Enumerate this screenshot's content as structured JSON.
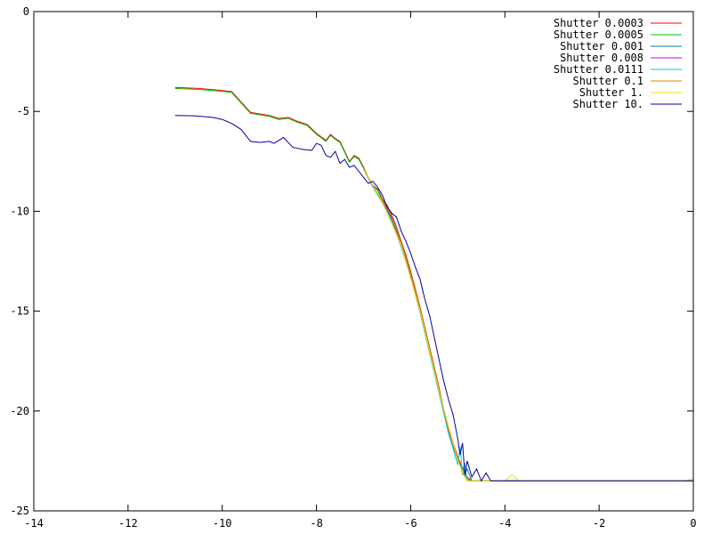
{
  "chart_data": {
    "type": "line",
    "title": "",
    "xlabel": "",
    "ylabel": "",
    "xlim": [
      -14,
      0
    ],
    "ylim": [
      -25,
      0
    ],
    "xticks": [
      -14,
      -12,
      -10,
      -8,
      -6,
      -4,
      -2,
      0
    ],
    "yticks": [
      0,
      -5,
      -10,
      -15,
      -20,
      -25
    ],
    "grid": false,
    "legend_position": "top-right",
    "series": [
      {
        "name": "Shutter 0.0003",
        "color": "#ff0000",
        "points": [
          [
            -11,
            -3.8
          ],
          [
            -10.5,
            -3.85
          ],
          [
            -10,
            -3.95
          ],
          [
            -9.8,
            -4.0
          ],
          [
            -9.4,
            -5.05
          ],
          [
            -9.0,
            -5.2
          ],
          [
            -8.8,
            -5.35
          ],
          [
            -8.6,
            -5.3
          ],
          [
            -8.4,
            -5.5
          ],
          [
            -8.2,
            -5.65
          ],
          [
            -8.0,
            -6.1
          ],
          [
            -7.8,
            -6.45
          ],
          [
            -7.7,
            -6.15
          ],
          [
            -7.6,
            -6.35
          ],
          [
            -7.5,
            -6.5
          ],
          [
            -7.4,
            -7.0
          ],
          [
            -7.3,
            -7.5
          ],
          [
            -7.2,
            -7.2
          ],
          [
            -7.1,
            -7.35
          ],
          [
            -7.0,
            -7.8
          ],
          [
            -6.9,
            -8.3
          ],
          [
            -6.8,
            -8.7
          ],
          [
            -6.7,
            -8.9
          ],
          [
            -6.6,
            -9.4
          ],
          [
            -6.5,
            -9.7
          ],
          [
            -6.4,
            -10.2
          ],
          [
            -6.3,
            -10.8
          ],
          [
            -6.2,
            -11.5
          ],
          [
            -6.1,
            -12.2
          ],
          [
            -6.0,
            -13.0
          ],
          [
            -5.9,
            -13.9
          ],
          [
            -5.8,
            -14.8
          ],
          [
            -5.7,
            -15.8
          ],
          [
            -5.6,
            -16.8
          ],
          [
            -5.5,
            -17.8
          ],
          [
            -5.4,
            -18.8
          ],
          [
            -5.3,
            -19.9
          ],
          [
            -5.2,
            -20.8
          ],
          [
            -5.1,
            -21.6
          ],
          [
            -5.0,
            -22.3
          ],
          [
            -4.9,
            -22.9
          ],
          [
            -4.8,
            -23.3
          ],
          [
            -4.7,
            -23.5
          ],
          [
            -4.0,
            -23.5
          ],
          [
            -2.0,
            -23.5
          ],
          [
            0,
            -23.5
          ]
        ]
      },
      {
        "name": "Shutter 0.0005",
        "color": "#00c000",
        "points": [
          [
            -11,
            -3.85
          ],
          [
            -10.5,
            -3.9
          ],
          [
            -10,
            -4.0
          ],
          [
            -9.8,
            -4.05
          ],
          [
            -9.4,
            -5.1
          ],
          [
            -9.0,
            -5.25
          ],
          [
            -8.8,
            -5.4
          ],
          [
            -8.6,
            -5.35
          ],
          [
            -8.4,
            -5.55
          ],
          [
            -8.2,
            -5.7
          ],
          [
            -8.0,
            -6.15
          ],
          [
            -7.8,
            -6.5
          ],
          [
            -7.7,
            -6.2
          ],
          [
            -7.6,
            -6.4
          ],
          [
            -7.5,
            -6.55
          ],
          [
            -7.4,
            -7.05
          ],
          [
            -7.3,
            -7.55
          ],
          [
            -7.2,
            -7.25
          ],
          [
            -7.1,
            -7.4
          ],
          [
            -7.0,
            -7.85
          ],
          [
            -6.9,
            -8.35
          ],
          [
            -6.8,
            -8.75
          ],
          [
            -6.7,
            -8.95
          ],
          [
            -6.6,
            -9.45
          ],
          [
            -6.5,
            -9.75
          ],
          [
            -6.4,
            -10.3
          ],
          [
            -6.3,
            -10.9
          ],
          [
            -6.2,
            -11.6
          ],
          [
            -6.1,
            -12.3
          ],
          [
            -6.0,
            -13.1
          ],
          [
            -5.9,
            -14.0
          ],
          [
            -5.8,
            -14.9
          ],
          [
            -5.7,
            -15.9
          ],
          [
            -5.6,
            -16.9
          ],
          [
            -5.5,
            -17.9
          ],
          [
            -5.4,
            -18.9
          ],
          [
            -5.3,
            -20.0
          ],
          [
            -5.2,
            -20.9
          ],
          [
            -5.1,
            -21.7
          ],
          [
            -5.0,
            -22.4
          ],
          [
            -4.9,
            -23.0
          ],
          [
            -4.8,
            -23.4
          ],
          [
            -4.7,
            -23.5
          ],
          [
            -4.0,
            -23.5
          ],
          [
            -2.0,
            -23.5
          ],
          [
            0,
            -23.5
          ]
        ]
      },
      {
        "name": "Shutter 0.001",
        "color": "#0080a0",
        "points": [
          [
            -7.0,
            -7.9
          ],
          [
            -6.8,
            -8.8
          ],
          [
            -6.6,
            -9.5
          ],
          [
            -6.4,
            -10.4
          ],
          [
            -6.2,
            -11.7
          ],
          [
            -6.0,
            -13.2
          ],
          [
            -5.8,
            -15.0
          ],
          [
            -5.6,
            -17.0
          ],
          [
            -5.4,
            -19.0
          ],
          [
            -5.2,
            -21.0
          ],
          [
            -5.0,
            -22.5
          ],
          [
            -4.9,
            -22.8
          ],
          [
            -4.85,
            -23.2
          ],
          [
            -4.8,
            -22.9
          ],
          [
            -4.7,
            -23.5
          ],
          [
            -4.5,
            -23.5
          ],
          [
            -2.0,
            -23.5
          ],
          [
            0,
            -23.5
          ]
        ]
      },
      {
        "name": "Shutter 0.008",
        "color": "#c000ff",
        "points": [
          [
            -7.0,
            -7.85
          ],
          [
            -6.8,
            -8.75
          ],
          [
            -6.6,
            -9.5
          ],
          [
            -6.4,
            -10.35
          ],
          [
            -6.2,
            -11.65
          ],
          [
            -6.0,
            -13.15
          ],
          [
            -5.8,
            -14.95
          ],
          [
            -5.6,
            -16.95
          ],
          [
            -5.4,
            -18.95
          ],
          [
            -5.2,
            -20.95
          ],
          [
            -5.0,
            -22.45
          ],
          [
            -4.9,
            -23.0
          ],
          [
            -4.8,
            -23.5
          ],
          [
            -4.5,
            -23.5
          ],
          [
            -2.0,
            -23.5
          ],
          [
            0,
            -23.5
          ]
        ]
      },
      {
        "name": "Shutter 0.0111",
        "color": "#00d0e0",
        "points": [
          [
            -7.0,
            -7.9
          ],
          [
            -6.8,
            -8.8
          ],
          [
            -6.6,
            -9.6
          ],
          [
            -6.4,
            -10.5
          ],
          [
            -6.2,
            -11.8
          ],
          [
            -6.0,
            -13.3
          ],
          [
            -5.8,
            -15.1
          ],
          [
            -5.6,
            -17.1
          ],
          [
            -5.4,
            -19.1
          ],
          [
            -5.2,
            -21.1
          ],
          [
            -5.1,
            -21.9
          ],
          [
            -5.0,
            -22.7
          ],
          [
            -4.95,
            -21.8
          ],
          [
            -4.9,
            -23.2
          ],
          [
            -4.85,
            -22.6
          ],
          [
            -4.8,
            -23.5
          ],
          [
            -4.5,
            -23.5
          ],
          [
            -2.0,
            -23.5
          ],
          [
            0,
            -23.5
          ]
        ]
      },
      {
        "name": "Shutter 0.1",
        "color": "#e08000",
        "points": [
          [
            -7.0,
            -7.85
          ],
          [
            -6.8,
            -8.75
          ],
          [
            -6.6,
            -9.45
          ],
          [
            -6.4,
            -10.3
          ],
          [
            -6.2,
            -11.6
          ],
          [
            -6.0,
            -13.1
          ],
          [
            -5.8,
            -14.9
          ],
          [
            -5.6,
            -16.9
          ],
          [
            -5.4,
            -18.9
          ],
          [
            -5.2,
            -20.9
          ],
          [
            -5.0,
            -22.4
          ],
          [
            -4.9,
            -23.1
          ],
          [
            -4.8,
            -23.5
          ],
          [
            -4.5,
            -23.5
          ],
          [
            -2.0,
            -23.5
          ],
          [
            0,
            -23.5
          ]
        ]
      },
      {
        "name": "Shutter 1.",
        "color": "#f0e000",
        "points": [
          [
            -7.0,
            -7.9
          ],
          [
            -6.6,
            -9.55
          ],
          [
            -6.2,
            -11.7
          ],
          [
            -5.8,
            -15.0
          ],
          [
            -5.4,
            -19.0
          ],
          [
            -5.0,
            -22.5
          ],
          [
            -4.8,
            -23.5
          ],
          [
            -4.0,
            -23.5
          ],
          [
            -3.85,
            -23.2
          ],
          [
            -3.7,
            -23.5
          ],
          [
            -2.0,
            -23.5
          ],
          [
            -0.2,
            -23.5
          ],
          [
            0,
            -23.4
          ]
        ]
      },
      {
        "name": "Shutter 10.",
        "color": "#0000a0",
        "points": [
          [
            -11,
            -5.2
          ],
          [
            -10.6,
            -5.22
          ],
          [
            -10.2,
            -5.3
          ],
          [
            -10.0,
            -5.4
          ],
          [
            -9.8,
            -5.6
          ],
          [
            -9.6,
            -5.9
          ],
          [
            -9.4,
            -6.5
          ],
          [
            -9.2,
            -6.55
          ],
          [
            -9.0,
            -6.5
          ],
          [
            -8.9,
            -6.6
          ],
          [
            -8.7,
            -6.3
          ],
          [
            -8.5,
            -6.8
          ],
          [
            -8.3,
            -6.9
          ],
          [
            -8.1,
            -6.95
          ],
          [
            -8.0,
            -6.6
          ],
          [
            -7.9,
            -6.7
          ],
          [
            -7.8,
            -7.2
          ],
          [
            -7.7,
            -7.3
          ],
          [
            -7.6,
            -7.0
          ],
          [
            -7.5,
            -7.6
          ],
          [
            -7.4,
            -7.4
          ],
          [
            -7.3,
            -7.8
          ],
          [
            -7.2,
            -7.7
          ],
          [
            -7.1,
            -8.0
          ],
          [
            -7.0,
            -8.3
          ],
          [
            -6.9,
            -8.6
          ],
          [
            -6.8,
            -8.5
          ],
          [
            -6.7,
            -8.8
          ],
          [
            -6.6,
            -9.2
          ],
          [
            -6.5,
            -9.8
          ],
          [
            -6.4,
            -10.1
          ],
          [
            -6.3,
            -10.3
          ],
          [
            -6.2,
            -11.0
          ],
          [
            -6.1,
            -11.5
          ],
          [
            -6.0,
            -12.1
          ],
          [
            -5.9,
            -12.8
          ],
          [
            -5.8,
            -13.4
          ],
          [
            -5.7,
            -14.4
          ],
          [
            -5.6,
            -15.2
          ],
          [
            -5.5,
            -16.3
          ],
          [
            -5.4,
            -17.4
          ],
          [
            -5.3,
            -18.5
          ],
          [
            -5.2,
            -19.4
          ],
          [
            -5.1,
            -20.2
          ],
          [
            -5.0,
            -21.4
          ],
          [
            -4.95,
            -22.2
          ],
          [
            -4.9,
            -21.6
          ],
          [
            -4.85,
            -23.2
          ],
          [
            -4.8,
            -22.5
          ],
          [
            -4.7,
            -23.3
          ],
          [
            -4.6,
            -22.9
          ],
          [
            -4.5,
            -23.5
          ],
          [
            -4.4,
            -23.1
          ],
          [
            -4.3,
            -23.5
          ],
          [
            -4.0,
            -23.5
          ],
          [
            -2.0,
            -23.5
          ],
          [
            0,
            -23.5
          ]
        ]
      }
    ]
  }
}
